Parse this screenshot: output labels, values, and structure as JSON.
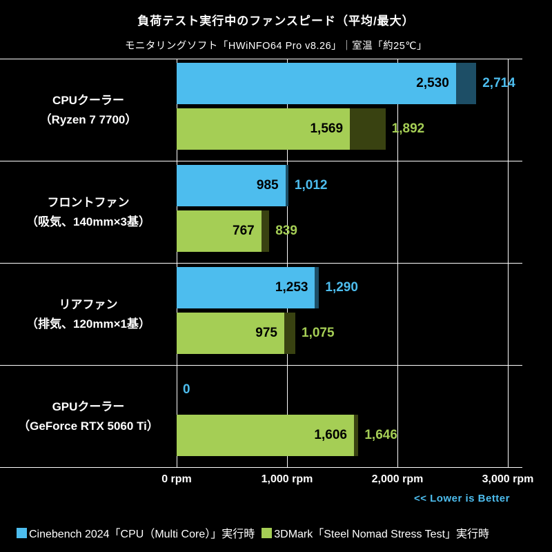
{
  "header": {
    "title": "負荷テスト実行中のファンスピード（平均/最大）",
    "subtitle": "モニタリングソフト「HWiNFO64 Pro v8.26」｜室温「約25℃」"
  },
  "footer_note": "<< Lower is Better",
  "colors": {
    "background": "#000000",
    "grid": "#ffffff",
    "text": "#ffffff",
    "cinebench_avg": "#4dbdee",
    "cinebench_max": "#1d4e66",
    "stress_avg": "#a5ce55",
    "stress_max": "#394211",
    "note_blue": "#4dbdee"
  },
  "legend": {
    "items": [
      {
        "label": "Cinebench 2024「CPU（Multi Core）」実行時",
        "color": "#4dbdee"
      },
      {
        "label": "3DMark「Steel Nomad Stress Test」実行時",
        "color": "#a5ce55"
      }
    ]
  },
  "chart_data": {
    "type": "bar",
    "orientation": "horizontal",
    "title": "負荷テスト実行中のファンスピード（平均/最大）",
    "subtitle": "モニタリングソフト「HWiNFO64 Pro v8.26」｜室温「約25℃」",
    "unit": "rpm",
    "x_max": 3000,
    "grid": true,
    "legend_position": "bottom",
    "x_ticks": [
      {
        "value": 0,
        "label": "0 rpm"
      },
      {
        "value": 1000,
        "label": "1,000 rpm"
      },
      {
        "value": 2000,
        "label": "2,000 rpm"
      },
      {
        "value": 3000,
        "label": "3,000 rpm"
      }
    ],
    "series_names": [
      "Cinebench 2024「CPU（Multi Core）」実行時",
      "3DMark「Steel Nomad Stress Test」実行時"
    ],
    "groups": [
      {
        "label": [
          "CPUクーラー",
          "（Ryzen 7 7700）"
        ],
        "bars": [
          {
            "series": "cinebench",
            "avg": 2530,
            "max": 2714,
            "avg_label": "2,530",
            "max_label": "2,714"
          },
          {
            "series": "stress",
            "avg": 1569,
            "max": 1892,
            "avg_label": "1,569",
            "max_label": "1,892"
          }
        ]
      },
      {
        "label": [
          "フロントファン",
          "（吸気、140mm×3基）"
        ],
        "bars": [
          {
            "series": "cinebench",
            "avg": 985,
            "max": 1012,
            "avg_label": "985",
            "max_label": "1,012"
          },
          {
            "series": "stress",
            "avg": 767,
            "max": 839,
            "avg_label": "767",
            "max_label": "839"
          }
        ]
      },
      {
        "label": [
          "リアファン",
          "（排気、120mm×1基）"
        ],
        "bars": [
          {
            "series": "cinebench",
            "avg": 1253,
            "max": 1290,
            "avg_label": "1,253",
            "max_label": "1,290"
          },
          {
            "series": "stress",
            "avg": 975,
            "max": 1075,
            "avg_label": "975",
            "max_label": "1,075"
          }
        ]
      },
      {
        "label": [
          "GPUクーラー",
          "（GeForce RTX 5060 Ti）"
        ],
        "bars": [
          {
            "series": "cinebench",
            "avg": 0,
            "max": 0,
            "avg_label": "",
            "max_label": "0"
          },
          {
            "series": "stress",
            "avg": 1606,
            "max": 1646,
            "avg_label": "1,606",
            "max_label": "1,646"
          }
        ]
      }
    ]
  }
}
